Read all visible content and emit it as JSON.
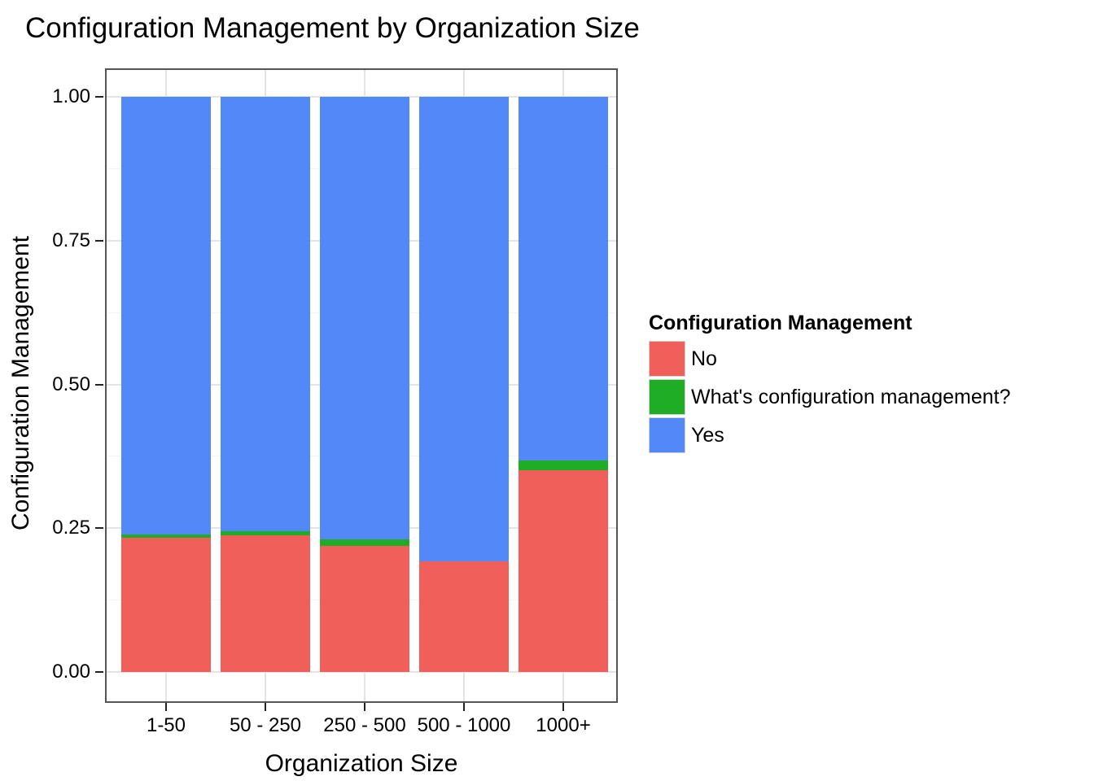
{
  "chart_data": {
    "type": "bar",
    "stacked": true,
    "normalized": true,
    "title": "Configuration Management by Organization Size",
    "xlabel": "Organization Size",
    "ylabel": "Configuration Management",
    "categories": [
      "1-50",
      "50 - 250",
      "250 - 500",
      "500 - 1000",
      "1000+"
    ],
    "series": [
      {
        "name": "No",
        "color": "#F15F5B",
        "values": [
          0.233,
          0.238,
          0.219,
          0.193,
          0.351
        ]
      },
      {
        "name": "What's configuration management?",
        "color": "#20AD26",
        "values": [
          0.006,
          0.007,
          0.012,
          0,
          0.017
        ]
      },
      {
        "name": "Yes",
        "color": "#5288F8",
        "values": [
          0.761,
          0.755,
          0.769,
          0.807,
          0.632
        ]
      }
    ],
    "y_ticks": [
      {
        "value": 1.0,
        "label": "1.00"
      },
      {
        "value": 0.75,
        "label": "0.75"
      },
      {
        "value": 0.5,
        "label": "0.50"
      },
      {
        "value": 0.25,
        "label": "0.25"
      },
      {
        "value": 0.0,
        "label": "0.00"
      }
    ],
    "y_minor_ticks": [
      0.125,
      0.375,
      0.625,
      0.875
    ],
    "ylim": [
      0,
      1
    ],
    "legend_title": "Configuration Management",
    "legend_position": "right",
    "grid": true,
    "colors": {
      "background": "#FFFFFF",
      "panel_border": "#555555",
      "grid_major": "#E4E4E4",
      "grid_minor": "#F4F4F4",
      "tick": "#222222",
      "text": "#000000"
    }
  }
}
